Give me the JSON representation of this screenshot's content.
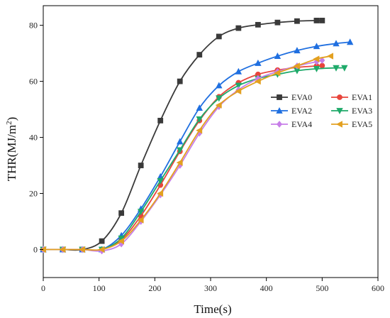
{
  "chart_data": {
    "type": "line",
    "xlabel": "Time(s)",
    "ylabel_main": "THR(MJ/m",
    "ylabel_sup": "2",
    "ylabel_close": ")",
    "xlim": [
      0,
      600
    ],
    "ylim": [
      -10,
      87
    ],
    "xticks": [
      0,
      100,
      200,
      300,
      400,
      500,
      600
    ],
    "yticks": [
      0,
      20,
      40,
      60,
      80
    ],
    "grid": false,
    "legend_position": "right",
    "series": [
      {
        "name": "EVA0",
        "color": "#3a3a3a",
        "marker": "square",
        "x": [
          0,
          35,
          70,
          105,
          140,
          175,
          210,
          245,
          280,
          315,
          350,
          385,
          420,
          455,
          490,
          500
        ],
        "y": [
          0,
          0,
          0,
          3,
          13,
          30,
          46,
          60,
          69.5,
          76,
          79,
          80.2,
          81,
          81.5,
          81.7,
          81.7
        ]
      },
      {
        "name": "EVA1",
        "color": "#e8453c",
        "marker": "circle",
        "x": [
          0,
          35,
          70,
          105,
          140,
          175,
          210,
          245,
          280,
          315,
          350,
          385,
          420,
          455,
          490,
          500
        ],
        "y": [
          0,
          0,
          0,
          0,
          3.5,
          12,
          23,
          35,
          46,
          54.5,
          59.5,
          62.5,
          64,
          65,
          65.5,
          65.6
        ]
      },
      {
        "name": "EVA2",
        "color": "#1f6fe0",
        "marker": "triangle-up",
        "x": [
          0,
          35,
          70,
          105,
          140,
          175,
          210,
          245,
          280,
          315,
          350,
          385,
          420,
          455,
          490,
          525,
          550
        ],
        "y": [
          0,
          0,
          0,
          0,
          5,
          14.5,
          26,
          38.5,
          50.5,
          58.5,
          63.5,
          66.5,
          69,
          71,
          72.5,
          73.5,
          74
        ]
      },
      {
        "name": "EVA3",
        "color": "#1faa6a",
        "marker": "triangle-down",
        "x": [
          0,
          35,
          70,
          105,
          140,
          175,
          210,
          245,
          280,
          315,
          350,
          385,
          420,
          455,
          490,
          525,
          540
        ],
        "y": [
          0,
          0,
          0,
          0,
          4,
          13.5,
          24.5,
          35.5,
          46.5,
          54,
          58.5,
          61,
          62.5,
          63.8,
          64.5,
          64.8,
          64.8
        ]
      },
      {
        "name": "EVA4",
        "color": "#c77ee8",
        "marker": "diamond",
        "x": [
          0,
          35,
          70,
          105,
          140,
          175,
          210,
          245,
          280,
          315,
          350,
          385,
          420,
          455,
          490,
          500
        ],
        "y": [
          0,
          0,
          0,
          -0.5,
          2,
          10,
          19.5,
          30,
          41.5,
          51,
          57,
          61,
          63.5,
          65.5,
          67,
          67.5
        ]
      },
      {
        "name": "EVA5",
        "color": "#e3a020",
        "marker": "left-triangle",
        "x": [
          0,
          35,
          70,
          105,
          140,
          175,
          210,
          245,
          280,
          315,
          350,
          385,
          420,
          455,
          490,
          515
        ],
        "y": [
          0,
          0,
          0,
          0,
          3,
          10.5,
          20,
          31,
          42.5,
          51.5,
          56.5,
          60,
          63,
          65.5,
          68,
          69
        ]
      }
    ]
  }
}
